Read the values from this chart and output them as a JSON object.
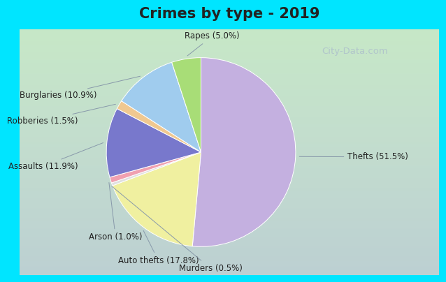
{
  "title": "Crimes by type - 2019",
  "labels": [
    "Thefts",
    "Auto thefts",
    "Murders",
    "Arson",
    "Assaults",
    "Robberies",
    "Burglaries",
    "Rapes"
  ],
  "display_labels": [
    "Thefts (51.5%)",
    "Auto thefts (17.8%)",
    "Murders (0.5%)",
    "Arson (1.0%)",
    "Assaults (11.9%)",
    "Robberies (1.5%)",
    "Burglaries (10.9%)",
    "Rapes (5.0%)"
  ],
  "values": [
    51.5,
    17.8,
    0.5,
    1.0,
    11.9,
    1.5,
    10.9,
    5.0
  ],
  "colors": [
    "#c4b0e0",
    "#f0f0a0",
    "#e0e0e0",
    "#f0a0b0",
    "#7878cc",
    "#f0c890",
    "#a0ccee",
    "#a8dd77"
  ],
  "startangle": 90,
  "background_top": "#00e5ff",
  "title_color": "#222222",
  "title_fontsize": 15,
  "watermark": "City-Data.com",
  "label_fontsize": 8.5,
  "label_color": "#222222"
}
